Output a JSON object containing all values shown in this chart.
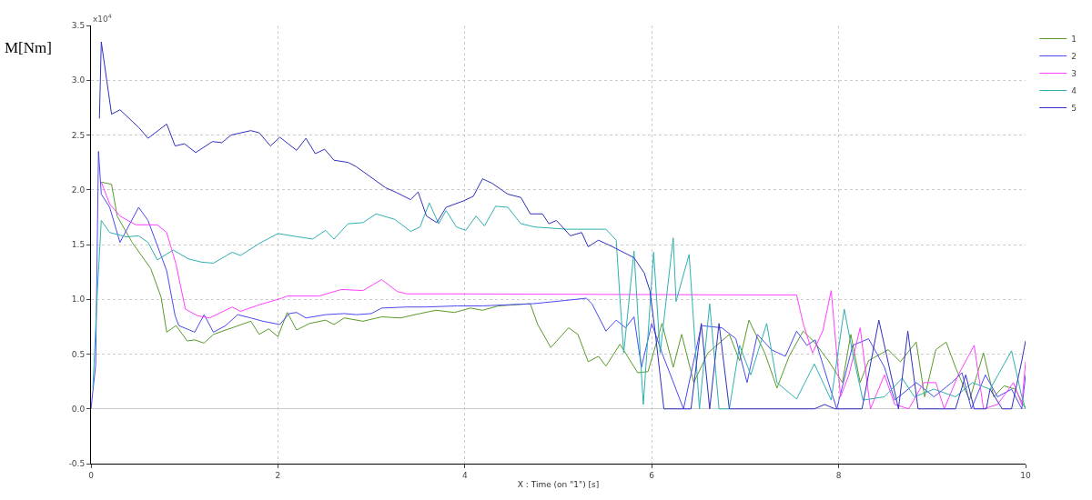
{
  "chart_data": {
    "type": "line",
    "ylabel": "M[Nm]",
    "xlabel": "X : Time (on \"1\") [s]",
    "annotations": [
      "x10$^{4}$"
    ],
    "xlim": [
      0,
      10
    ],
    "xticks": [
      0,
      2,
      4,
      6,
      8,
      10
    ],
    "ylim": [
      -0.5,
      3.5
    ],
    "yticks": [
      {
        "value": -0.5,
        "label": "-0.5"
      },
      {
        "value": 0,
        "label": "0.0"
      },
      {
        "value": 0.5,
        "label": "0.5"
      },
      {
        "value": 1,
        "label": "1.0"
      },
      {
        "value": 1.5,
        "label": "1.5"
      },
      {
        "value": 2,
        "label": "2.0"
      },
      {
        "value": 2.5,
        "label": "2.5"
      },
      {
        "value": 3,
        "label": "3.0"
      },
      {
        "value": 3.5,
        "label": "3.5"
      }
    ],
    "grid": true,
    "legend": "top right",
    "line_style": "solid",
    "marker": "none",
    "series": [
      {
        "name": "1",
        "color": "#5a9a2a",
        "x": [
          0.11,
          0.22,
          0.28,
          0.44,
          0.64,
          0.75,
          0.81,
          0.91,
          1.03,
          1.11,
          1.21,
          1.31,
          1.51,
          1.71,
          1.8,
          1.9,
          2.0,
          2.1,
          2.2,
          2.34,
          2.51,
          2.6,
          2.71,
          2.91,
          3.11,
          3.31,
          3.52,
          3.69,
          3.89,
          4.06,
          4.19,
          4.36,
          4.7,
          4.78,
          4.92,
          5.11,
          5.21,
          5.32,
          5.43,
          5.51,
          5.66,
          5.85,
          5.96,
          6.11,
          6.23,
          6.32,
          6.45,
          6.6,
          6.83,
          6.94,
          7.04,
          7.21,
          7.34,
          7.47,
          7.62,
          7.74,
          7.89,
          8.04,
          8.13,
          8.23,
          8.32,
          8.53,
          8.66,
          8.83,
          8.92,
          9.04,
          9.15,
          9.25,
          9.4,
          9.55,
          9.66,
          9.77,
          9.89,
          10
        ],
        "values": [
          2.07,
          2.05,
          1.76,
          1.52,
          1.28,
          1.02,
          0.7,
          0.76,
          0.62,
          0.63,
          0.6,
          0.68,
          0.74,
          0.8,
          0.68,
          0.73,
          0.66,
          0.88,
          0.72,
          0.78,
          0.81,
          0.77,
          0.83,
          0.8,
          0.84,
          0.83,
          0.87,
          0.9,
          0.88,
          0.92,
          0.9,
          0.94,
          0.96,
          0.77,
          0.56,
          0.74,
          0.68,
          0.43,
          0.48,
          0.39,
          0.59,
          0.33,
          0.34,
          0.78,
          0.38,
          0.68,
          0.24,
          0.51,
          0.68,
          0.44,
          0.81,
          0.51,
          0.19,
          0.48,
          0.71,
          0.61,
          0.44,
          0.24,
          0.68,
          0.24,
          0.44,
          0.54,
          0.43,
          0.61,
          0.11,
          0.54,
          0.61,
          0.38,
          0.08,
          0.51,
          0.11,
          0.21,
          0.18,
          0
        ]
      },
      {
        "name": "2",
        "color": "#4a4af0",
        "x": [
          0,
          0.05,
          0.08,
          0.11,
          0.2,
          0.31,
          0.51,
          0.61,
          0.81,
          0.9,
          0.94,
          1.11,
          1.21,
          1.31,
          1.44,
          1.57,
          1.71,
          1.84,
          2.02,
          2.12,
          2.2,
          2.3,
          2.51,
          2.71,
          2.84,
          3.0,
          3.11,
          3.38,
          3.58,
          3.92,
          4.19,
          4.73,
          5.08,
          5.3,
          5.36,
          5.51,
          5.62,
          5.72,
          5.81,
          5.89,
          6.0,
          6.11,
          6.34,
          6.53,
          6.75,
          6.9,
          7.02,
          7.13,
          7.28,
          7.43,
          7.55,
          7.66,
          7.75,
          7.89,
          7.98,
          8.15,
          8.32,
          8.49,
          8.6,
          8.83,
          9.02,
          9.21,
          9.32,
          9.42,
          9.57,
          9.7,
          9.85,
          9.96,
          10
        ],
        "values": [
          0,
          0.4,
          2.35,
          1.96,
          1.84,
          1.52,
          1.84,
          1.72,
          1.26,
          0.85,
          0.76,
          0.7,
          0.86,
          0.7,
          0.76,
          0.86,
          0.83,
          0.8,
          0.77,
          0.87,
          0.88,
          0.83,
          0.86,
          0.87,
          0.86,
          0.87,
          0.92,
          0.93,
          0.93,
          0.94,
          0.94,
          0.96,
          0.99,
          1.01,
          0.96,
          0.71,
          0.81,
          0.74,
          0.84,
          0.38,
          0.78,
          0.51,
          0,
          0.76,
          0.74,
          0.64,
          0.24,
          0.68,
          0.54,
          0.48,
          0.71,
          0.58,
          0.63,
          0.24,
          0,
          0.58,
          0.64,
          0.38,
          0.08,
          0.24,
          0.11,
          0.24,
          0.33,
          0,
          0.31,
          0.11,
          0.18,
          0,
          0.31
        ]
      },
      {
        "name": "3",
        "color": "#ff40ff",
        "x": [
          0.11,
          0.2,
          0.31,
          0.48,
          0.71,
          0.81,
          0.91,
          1.01,
          1.14,
          1.27,
          1.51,
          1.6,
          1.8,
          2.04,
          2.1,
          2.44,
          2.68,
          2.91,
          3.11,
          3.28,
          3.38,
          3.78,
          7.08,
          7.55,
          7.62,
          7.72,
          7.83,
          7.92,
          8.02,
          8.11,
          8.23,
          8.34,
          8.49,
          8.6,
          8.75,
          8.91,
          9.04,
          9.13,
          9.28,
          9.45,
          9.55,
          9.7,
          9.87,
          9.96,
          10
        ],
        "values": [
          2.07,
          1.87,
          1.76,
          1.68,
          1.68,
          1.61,
          1.32,
          0.91,
          0.85,
          0.83,
          0.93,
          0.89,
          0.95,
          1.01,
          1.03,
          1.03,
          1.09,
          1.08,
          1.18,
          1.07,
          1.05,
          1.05,
          1.04,
          1.04,
          0.78,
          0.51,
          0.71,
          1.08,
          0.11,
          0.31,
          0.74,
          0,
          0.31,
          0.04,
          0,
          0.24,
          0.24,
          0,
          0.31,
          0.58,
          0,
          0.04,
          0.24,
          0.04,
          0.43
        ]
      },
      {
        "name": "4",
        "color": "#30b0b0",
        "x": [
          0.02,
          0.07,
          0.11,
          0.2,
          0.38,
          0.51,
          0.61,
          0.71,
          0.88,
          1.04,
          1.18,
          1.31,
          1.51,
          1.6,
          1.8,
          2.0,
          2.37,
          2.51,
          2.6,
          2.75,
          2.91,
          3.05,
          3.25,
          3.42,
          3.52,
          3.62,
          3.72,
          3.8,
          3.91,
          4.01,
          4.12,
          4.21,
          4.33,
          4.46,
          4.6,
          4.75,
          5.09,
          5.51,
          5.62,
          5.66,
          5.7,
          5.81,
          5.91,
          6.02,
          6.09,
          6.23,
          6.26,
          6.4,
          6.51,
          6.62,
          6.72,
          6.83,
          6.94,
          7.06,
          7.23,
          7.34,
          7.55,
          7.74,
          7.92,
          8.06,
          8.15,
          8.26,
          8.49,
          8.68,
          8.81,
          9.02,
          9.25,
          9.43,
          9.62,
          9.85,
          9.96,
          10
        ],
        "values": [
          0.19,
          1.1,
          1.72,
          1.61,
          1.57,
          1.58,
          1.52,
          1.36,
          1.45,
          1.37,
          1.34,
          1.33,
          1.43,
          1.4,
          1.51,
          1.6,
          1.55,
          1.63,
          1.55,
          1.69,
          1.7,
          1.78,
          1.73,
          1.62,
          1.66,
          1.88,
          1.69,
          1.81,
          1.66,
          1.63,
          1.76,
          1.67,
          1.85,
          1.84,
          1.69,
          1.66,
          1.64,
          1.64,
          1.54,
          1.01,
          0.51,
          1.44,
          0.04,
          1.43,
          0.51,
          1.56,
          0.98,
          1.41,
          0,
          0.96,
          0,
          0,
          0.58,
          0.31,
          0.78,
          0.24,
          0.09,
          0.41,
          0.08,
          0.91,
          0.51,
          0.08,
          0.11,
          0.28,
          0.11,
          0.18,
          0.11,
          0.24,
          0.18,
          0.53,
          0.11,
          0
        ]
      },
      {
        "name": "5",
        "color": "#3030c0",
        "x": [
          0.09,
          0.11,
          0.22,
          0.31,
          0.51,
          0.61,
          0.81,
          0.9,
          1.0,
          1.12,
          1.3,
          1.4,
          1.5,
          1.71,
          1.8,
          1.92,
          2.02,
          2.2,
          2.3,
          2.4,
          2.5,
          2.6,
          2.75,
          2.84,
          3.15,
          3.28,
          3.42,
          3.5,
          3.59,
          3.7,
          3.8,
          3.99,
          4.09,
          4.19,
          4.29,
          4.46,
          4.6,
          4.7,
          4.83,
          4.9,
          4.98,
          5.13,
          5.25,
          5.32,
          5.43,
          5.58,
          5.81,
          5.92,
          5.98,
          6.04,
          6.13,
          6.42,
          6.53,
          6.62,
          6.72,
          6.83,
          7.74,
          7.85,
          7.96,
          8.25,
          8.43,
          8.64,
          8.74,
          8.85,
          9.25,
          9.36,
          9.45,
          9.58,
          9.62,
          9.75,
          9.85,
          9.96,
          10
        ],
        "values": [
          2.65,
          3.35,
          2.69,
          2.73,
          2.57,
          2.47,
          2.6,
          2.4,
          2.42,
          2.34,
          2.44,
          2.43,
          2.5,
          2.54,
          2.52,
          2.4,
          2.48,
          2.36,
          2.47,
          2.33,
          2.37,
          2.27,
          2.25,
          2.21,
          2.02,
          1.97,
          1.91,
          1.98,
          1.76,
          1.7,
          1.84,
          1.9,
          1.94,
          2.1,
          2.06,
          1.96,
          1.93,
          1.78,
          1.78,
          1.69,
          1.72,
          1.58,
          1.61,
          1.48,
          1.54,
          1.48,
          1.38,
          1.24,
          1.08,
          0.68,
          0,
          0,
          0.78,
          0,
          0.78,
          0,
          0,
          0.04,
          0,
          0,
          0.81,
          0,
          0.71,
          0,
          0,
          0.31,
          0,
          0,
          0.18,
          0,
          0,
          0.44,
          0.62
        ]
      }
    ]
  }
}
